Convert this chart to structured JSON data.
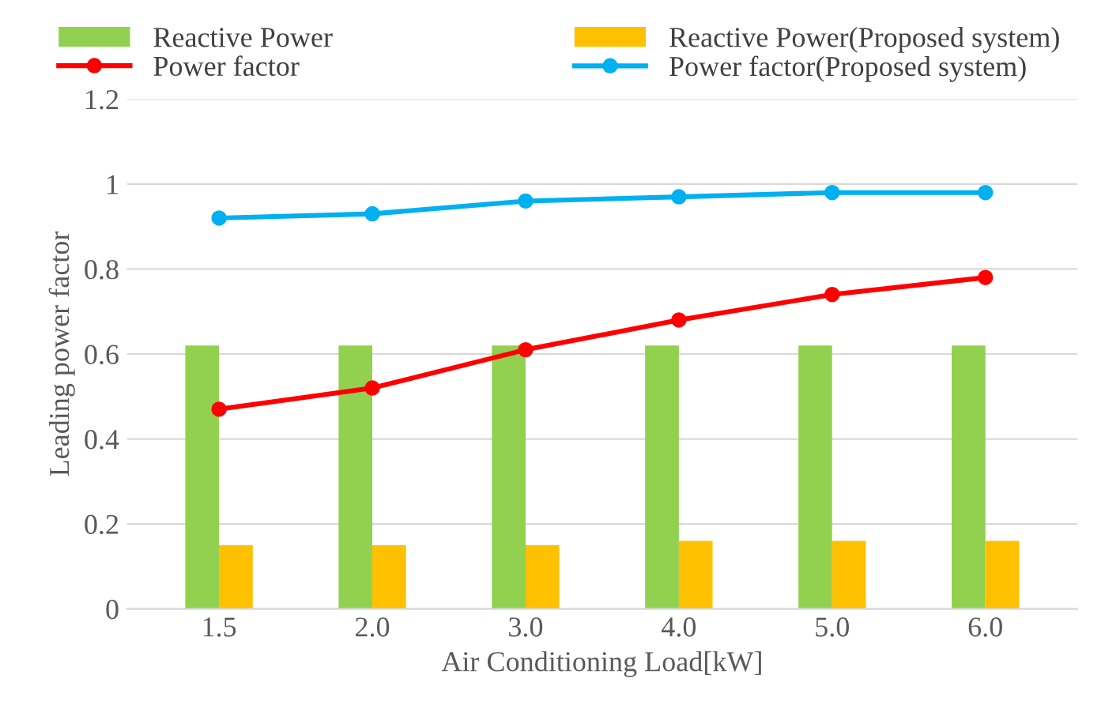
{
  "chart_data": {
    "type": "bar",
    "xlabel": "Air Conditioning Load[kW]",
    "ylabel": "Leading power factor",
    "categories": [
      "1.5",
      "2.0",
      "3.0",
      "4.0",
      "5.0",
      "6.0"
    ],
    "series": [
      {
        "name": "Reactive Power",
        "color": "#92d050",
        "values": [
          0.62,
          0.62,
          0.62,
          0.62,
          0.62,
          0.62
        ]
      },
      {
        "name": "Reactive Power(Proposed system)",
        "color": "#ffc000",
        "values": [
          0.15,
          0.15,
          0.15,
          0.16,
          0.16,
          0.16
        ]
      },
      {
        "name": "Power factor",
        "type": "line",
        "color": "#ff0000",
        "marker": "circle",
        "values": [
          0.47,
          0.52,
          0.61,
          0.68,
          0.74,
          0.78
        ]
      },
      {
        "name": "Power factor(Proposed system)",
        "type": "line",
        "color": "#00b0f0",
        "marker": "circle",
        "values": [
          0.92,
          0.93,
          0.96,
          0.97,
          0.98,
          0.98
        ]
      }
    ],
    "ylim": [
      0,
      1.2
    ],
    "yticks": [
      0,
      {
        "value": 0.2,
        "label": "0.2"
      },
      {
        "value": 0.4,
        "label": "0.4"
      },
      {
        "value": 0.6,
        "label": "0.6"
      },
      {
        "value": 0.8,
        "label": "0.8"
      },
      1,
      {
        "value": 1.2,
        "label": "1.2"
      }
    ],
    "grid": "y",
    "legend": "top"
  }
}
